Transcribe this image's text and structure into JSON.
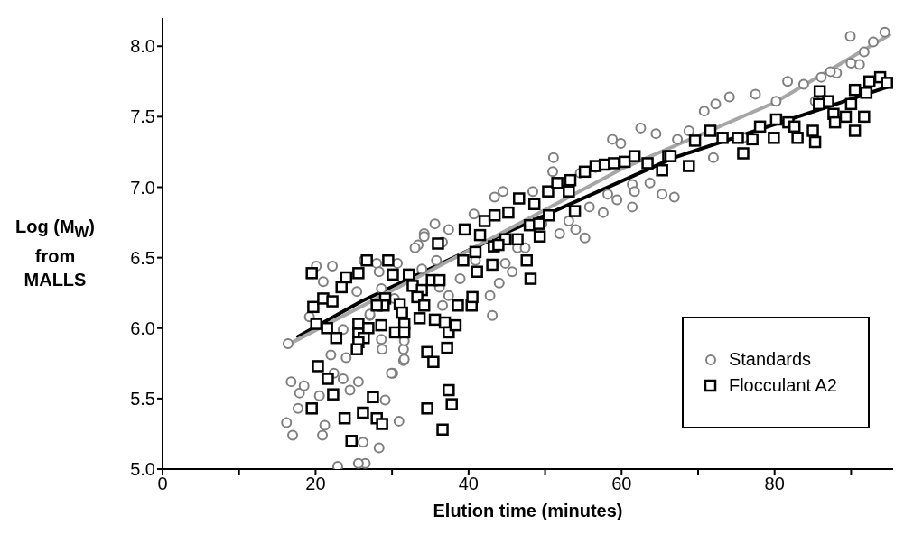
{
  "chart_data": {
    "type": "scatter",
    "xlabel": "Elution time (minutes)",
    "ylabel": "Log (M$_{W}$) from MALLS",
    "xlim": [
      0,
      95.5
    ],
    "ylim": [
      5,
      8.2
    ],
    "xticks": [
      0,
      {
        "value": 10,
        "label": null
      },
      20,
      {
        "value": 30,
        "label": null
      },
      40,
      {
        "value": 50,
        "label": null
      },
      60,
      {
        "value": 70,
        "label": null
      },
      80,
      {
        "value": 90,
        "label": null
      }
    ],
    "yticks": [
      {
        "value": 5,
        "label": "5.0"
      },
      5.5,
      {
        "value": 6,
        "label": "6.0"
      },
      6.5,
      {
        "value": 7,
        "label": "7.0"
      },
      7.5,
      {
        "value": 8,
        "label": "8.0"
      }
    ],
    "legend": "bottom right",
    "series": [
      {
        "name": "Standards",
        "marker": "circle",
        "color": "#7f7f7f",
        "x": [
          16.4,
          16.8,
          16.2,
          17.0,
          17.9,
          17.7,
          18.5,
          20.1,
          22.2,
          21.0,
          19.2,
          20.5,
          20.9,
          21.2,
          22.0,
          22.4,
          23.6,
          24.5,
          25.6,
          26.2,
          26.5,
          25.6,
          22.9,
          28.3,
          30.9,
          29.1,
          30.1,
          31.5,
          31.5,
          28.7,
          28.6,
          24.0,
          23.6,
          25.4,
          26.3,
          28.0,
          30.7,
          27.1,
          28.6,
          30.3,
          33.4,
          34.2,
          36.6,
          36.2,
          51.1,
          51.0,
          62.5,
          64.5,
          58.8,
          59.9,
          61.4,
          55.2,
          54.0,
          51.9,
          57.6,
          59.4,
          63.7,
          66.9,
          65.3,
          48.4,
          44.5,
          43.4,
          40.7,
          37.4,
          35.6,
          34.2,
          33.0,
          36.6,
          45.7,
          44.0,
          42.8,
          43.1,
          44.8,
          46.4,
          47.4,
          28.3,
          27.1,
          31.6,
          31.6,
          29.9,
          37.4,
          38.9,
          40.9,
          35.8,
          33.9,
          49.6,
          53.1,
          55.8,
          58.2,
          61.4,
          56.6,
          54.6,
          89.9,
          91.1,
          91.7,
          94.4,
          92.9,
          88.1,
          86.1,
          83.8,
          81.7,
          80.2,
          77.5,
          74.1,
          72.3,
          70.8,
          68.8,
          67.3,
          61.7,
          72.0,
          75.9,
          87.3,
          90.0,
          85.3
        ],
        "values": [
          5.89,
          5.62,
          5.33,
          5.24,
          5.54,
          5.43,
          5.59,
          6.44,
          6.44,
          6.33,
          6.08,
          5.52,
          5.24,
          5.31,
          5.81,
          5.68,
          5.64,
          5.56,
          5.62,
          5.19,
          5.04,
          5.04,
          5.02,
          5.15,
          5.34,
          5.49,
          5.68,
          5.77,
          5.85,
          5.85,
          5.92,
          5.79,
          5.99,
          6.26,
          6.48,
          6.46,
          6.46,
          6.09,
          6.28,
          6.21,
          6.59,
          6.67,
          6.16,
          6.29,
          7.21,
          7.11,
          7.42,
          7.38,
          7.34,
          7.31,
          6.86,
          6.64,
          6.7,
          6.67,
          6.82,
          6.91,
          7.03,
          6.93,
          6.95,
          6.97,
          6.97,
          6.93,
          6.81,
          6.7,
          6.74,
          6.65,
          6.57,
          6.61,
          6.4,
          6.32,
          6.23,
          6.09,
          6.46,
          6.57,
          6.57,
          6.4,
          6.1,
          5.91,
          5.78,
          5.68,
          6.23,
          6.35,
          6.48,
          6.48,
          6.42,
          6.74,
          6.76,
          6.86,
          6.95,
          7.02,
          7.14,
          7.1,
          8.07,
          7.87,
          7.96,
          8.1,
          8.03,
          7.81,
          7.78,
          7.73,
          7.75,
          7.61,
          7.66,
          7.64,
          7.59,
          7.54,
          7.4,
          7.34,
          6.97,
          7.21,
          7.35,
          7.82,
          7.88,
          7.61
        ]
      },
      {
        "name": "Flocculant A2",
        "marker": "square",
        "color": "#000000",
        "x": [
          19.5,
          19.7,
          21.0,
          22.2,
          20.1,
          21.5,
          22.7,
          20.3,
          21.6,
          22.3,
          19.5,
          23.8,
          24.7,
          26.2,
          27.5,
          28.0,
          28.7,
          24.0,
          23.4,
          25.6,
          26.7,
          29.5,
          30.1,
          32.2,
          32.7,
          33.9,
          35.2,
          36.2,
          36.0,
          33.3,
          34.2,
          29.1,
          28.9,
          28.0,
          31.0,
          31.3,
          31.6,
          30.4,
          31.6,
          25.6,
          25.6,
          26.9,
          28.6,
          26.3,
          25.6,
          25.4,
          33.6,
          35.6,
          36.9,
          37.4,
          34.6,
          35.4,
          37.2,
          37.4,
          37.8,
          34.6,
          36.6,
          38.6,
          40.4,
          40.5,
          38.3,
          39.3,
          41.1,
          39.5,
          40.9,
          43.1,
          43.3,
          41.5,
          42.1,
          43.4,
          44.8,
          46.4,
          43.9,
          46.6,
          48.6,
          45.2,
          47.6,
          48.1,
          48.0,
          49.3,
          50.5,
          49.2,
          50.4,
          51.6,
          53.3,
          53.1,
          53.9,
          55.2,
          56.6,
          57.8,
          59.0,
          60.4,
          61.7,
          63.4,
          65.3,
          66.1,
          68.8,
          66.4,
          69.6,
          71.6,
          73.2,
          75.9,
          75.2,
          77.1,
          78.1,
          79.9,
          80.2,
          81.8,
          83.0,
          82.6,
          85.0,
          85.3,
          85.9,
          87.0,
          87.7,
          87.9,
          89.3,
          90.5,
          90.5,
          91.7,
          90.0,
          92.0,
          92.4,
          93.8,
          94.7,
          85.8
        ],
        "values": [
          6.39,
          6.15,
          6.21,
          6.19,
          6.03,
          6.0,
          5.93,
          5.73,
          5.64,
          5.53,
          5.43,
          5.36,
          5.2,
          5.4,
          5.51,
          5.36,
          5.32,
          6.36,
          6.29,
          6.39,
          6.48,
          6.48,
          6.38,
          6.38,
          6.3,
          6.27,
          6.34,
          6.34,
          6.6,
          6.22,
          6.16,
          6.21,
          6.16,
          6.16,
          6.17,
          6.11,
          6.03,
          5.97,
          5.97,
          6.03,
          5.96,
          6.0,
          6.02,
          5.93,
          5.9,
          5.85,
          6.07,
          6.06,
          6.04,
          5.97,
          5.83,
          5.76,
          5.86,
          5.56,
          5.46,
          5.43,
          5.28,
          6.16,
          6.16,
          6.22,
          6.02,
          6.48,
          6.4,
          6.7,
          6.54,
          6.45,
          6.58,
          6.66,
          6.76,
          6.8,
          6.63,
          6.63,
          6.59,
          6.92,
          6.88,
          6.82,
          6.48,
          6.35,
          6.73,
          6.65,
          6.8,
          6.74,
          6.97,
          7.03,
          7.05,
          6.97,
          6.83,
          7.11,
          7.15,
          7.16,
          7.17,
          7.18,
          7.22,
          7.17,
          7.12,
          7.22,
          7.15,
          7.22,
          7.33,
          7.4,
          7.35,
          7.24,
          7.35,
          7.34,
          7.43,
          7.35,
          7.48,
          7.46,
          7.35,
          7.43,
          7.4,
          7.32,
          7.68,
          7.61,
          7.52,
          7.46,
          7.5,
          7.4,
          7.69,
          7.5,
          7.59,
          7.67,
          7.75,
          7.78,
          7.74,
          7.59
        ]
      },
      {
        "type": "line",
        "color": "#000000",
        "x": [
          17.7,
          26,
          45,
          66.9,
          94.7
        ],
        "values": [
          5.94,
          6.19,
          6.68,
          7.21,
          7.71
        ]
      },
      {
        "type": "line",
        "color": "#a6a6a6",
        "x": [
          17,
          40,
          60,
          80,
          95
        ],
        "values": [
          5.9,
          6.55,
          7.13,
          7.6,
          8.08
        ]
      }
    ]
  }
}
